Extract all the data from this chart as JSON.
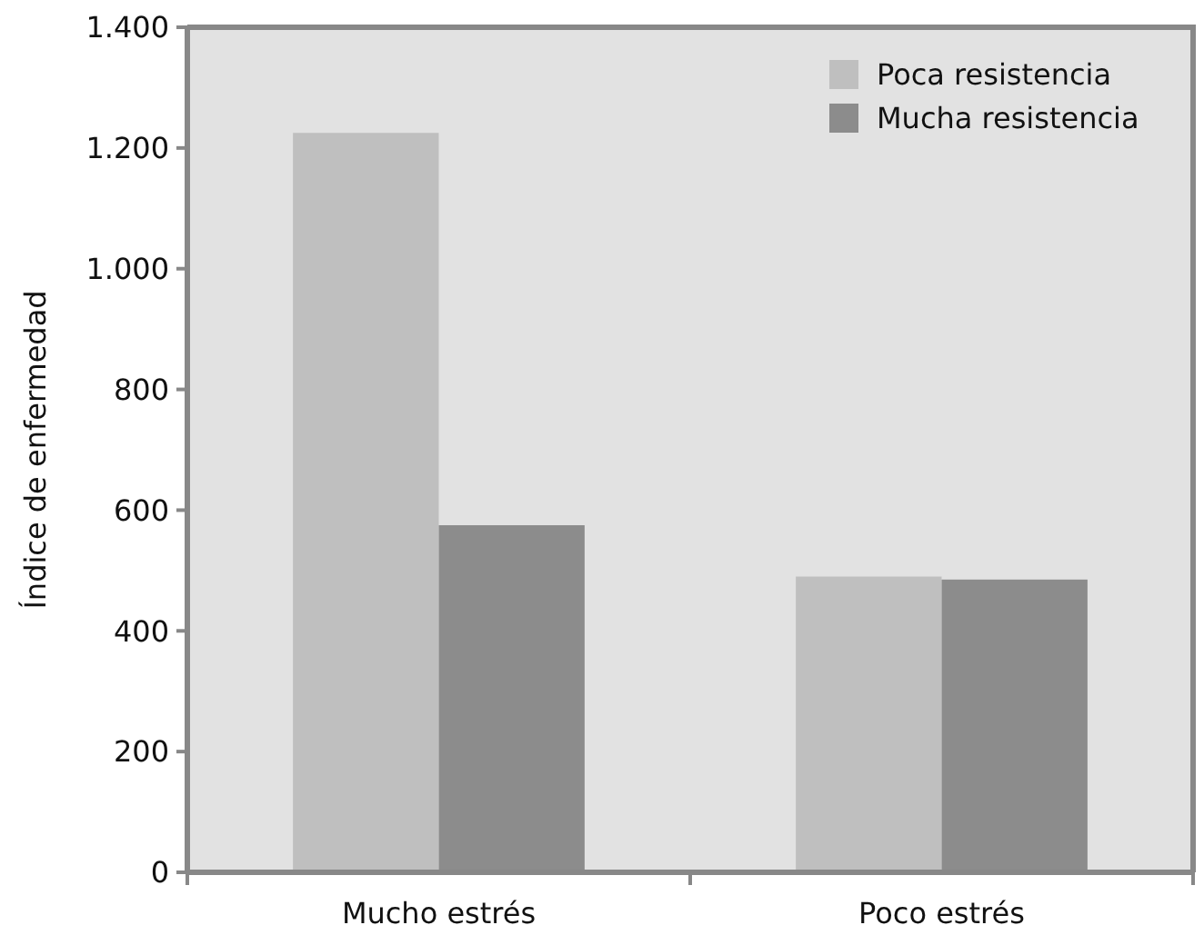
{
  "chart_data": {
    "type": "bar",
    "ylabel": "Índice de enfermedad",
    "categories": [
      "Mucho estrés",
      "Poco estrés"
    ],
    "series": [
      {
        "name": "Poca resistencia",
        "color": "#bfbfbf",
        "values": [
          1225,
          490
        ]
      },
      {
        "name": "Mucha resistencia",
        "color": "#8c8c8c",
        "values": [
          575,
          485
        ]
      }
    ],
    "ylim": [
      0,
      1400
    ],
    "yticks": [
      0,
      200,
      400,
      600,
      800,
      {
        "value": 1000,
        "label": "1.000"
      },
      {
        "value": 1200,
        "label": "1.200"
      },
      {
        "value": 1400,
        "label": "1.400"
      }
    ],
    "grid": false,
    "legend": "top right"
  }
}
